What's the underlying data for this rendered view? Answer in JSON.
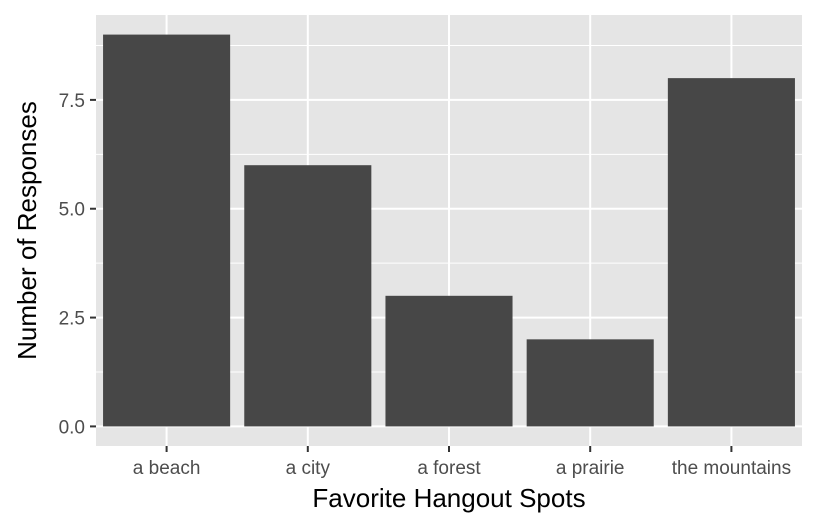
{
  "chart_data": {
    "type": "bar",
    "title": "",
    "xlabel": "Favorite Hangout Spots",
    "ylabel": "Number of Responses",
    "categories": [
      "a beach",
      "a city",
      "a forest",
      "a prairie",
      "the mountains"
    ],
    "values": [
      9,
      6,
      3,
      2,
      8
    ],
    "ylim": [
      -0.45,
      9.45
    ],
    "yticks": [
      0,
      2.5,
      5,
      7.5
    ],
    "ytick_labels": [
      "0.0",
      "2.5",
      "5.0",
      "7.5"
    ],
    "grid": true,
    "legend": "none",
    "colors": {
      "panel_background": "#e5e5e5",
      "grid_major": "#ffffff",
      "bar_fill": "#474747",
      "tick_mark": "#333333"
    }
  }
}
